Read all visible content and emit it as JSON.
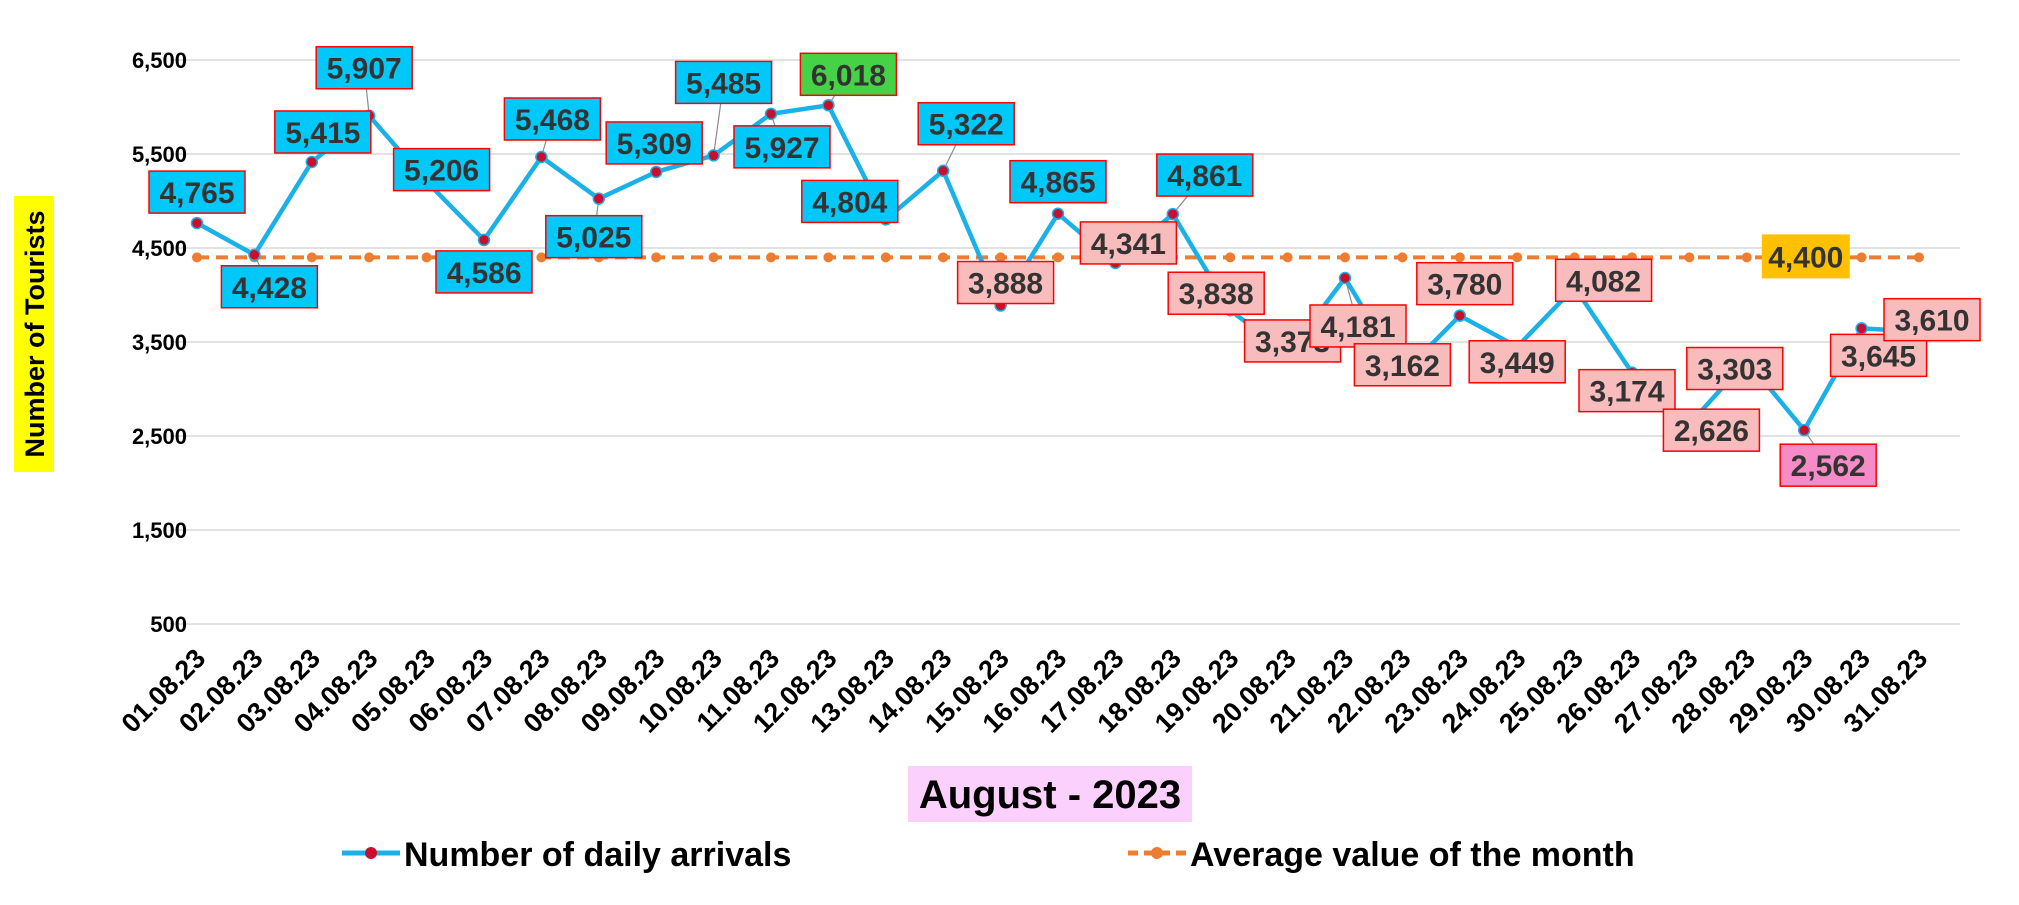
{
  "chart_data": {
    "type": "line",
    "ylabel": "Number of Tourists",
    "xlabel": "August - 2023",
    "ylim": [
      500,
      6500
    ],
    "yticks": [
      "6,500",
      "5,500",
      "4,500",
      "3,500",
      "2,500",
      "1,500",
      "500"
    ],
    "ytick_values": [
      6500,
      5500,
      4500,
      3500,
      2500,
      1500,
      500
    ],
    "grid": true,
    "legend_position": "bottom",
    "categories": [
      "01.08.23",
      "02.08.23",
      "03.08.23",
      "04.08.23",
      "05.08.23",
      "06.08.23",
      "07.08.23",
      "08.08.23",
      "09.08.23",
      "10.08.23",
      "11.08.23",
      "12.08.23",
      "13.08.23",
      "14.08.23",
      "15.08.23",
      "16.08.23",
      "17.08.23",
      "18.08.23",
      "19.08.23",
      "20.08.23",
      "21.08.23",
      "22.08.23",
      "23.08.23",
      "24.08.23",
      "25.08.23",
      "26.08.23",
      "27.08.23",
      "28.08.23",
      "29.08.23",
      "30.08.23",
      "31.08.23"
    ],
    "series": [
      {
        "name": "Number of daily arrivals",
        "color": "#1ab0e8",
        "marker_color": "#c8102e",
        "values": [
          4765,
          4428,
          5415,
          5907,
          5206,
          4586,
          5468,
          5025,
          5309,
          5485,
          5927,
          6018,
          4804,
          5322,
          3888,
          4865,
          4341,
          4861,
          3838,
          3373,
          4181,
          3162,
          3780,
          3449,
          4082,
          3174,
          2626,
          3303,
          2562,
          3645,
          3610
        ],
        "value_labels": [
          "4,765",
          "4,428",
          "5,415",
          "5,907",
          "5,206",
          "4,586",
          "5,468",
          "5,025",
          "5,309",
          "5,485",
          "5,927",
          "6,018",
          "4,804",
          "5,322",
          "3,888",
          "4,865",
          "4,341",
          "4,861",
          "3,838",
          "3,373",
          "4,181",
          "3,162",
          "3,780",
          "3,449",
          "4,082",
          "3,174",
          "2,626",
          "3,303",
          "2,562",
          "3,645",
          "3,610"
        ]
      },
      {
        "name": "Average value of the month",
        "color": "#ed7d31",
        "values": [
          4400,
          4400,
          4400,
          4400,
          4400,
          4400,
          4400,
          4400,
          4400,
          4400,
          4400,
          4400,
          4400,
          4400,
          4400,
          4400,
          4400,
          4400,
          4400,
          4400,
          4400,
          4400,
          4400,
          4400,
          4400,
          4400,
          4400,
          4400,
          4400,
          4400,
          4400
        ],
        "value_label": "4,400"
      }
    ],
    "colors": {
      "above_average_box": "#00c8f8",
      "below_average_box": "#f8bcbc",
      "max_box": "#46d246",
      "min_box": "#f58cc8",
      "average_box": "#ffc000",
      "ylabel_highlight": "#ffff00",
      "xlabel_highlight": "#fcd0fc",
      "label_border": "#ff0000",
      "gridline": "#d9d9d9"
    }
  }
}
